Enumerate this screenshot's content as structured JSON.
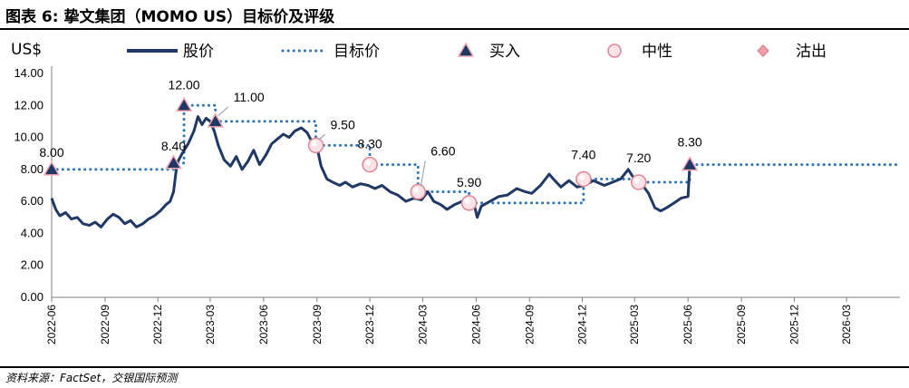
{
  "title": "图表 6: 挚文集团（MOMO US）目标价及评级",
  "source": "资料来源：FactSet，交银国际预测",
  "chart_data": {
    "type": "line",
    "ylabel": "US$",
    "ylim": [
      0,
      14
    ],
    "yticks": [
      "14.00",
      "12.00",
      "10.00",
      "8.00",
      "6.00",
      "4.00",
      "2.00",
      "0.00"
    ],
    "xticks": [
      "2022-06",
      "2022-09",
      "2022-12",
      "2023-03",
      "2023-06",
      "2023-09",
      "2023-12",
      "2024-03",
      "2024-06",
      "2024-09",
      "2024-12",
      "2025-03",
      "2025-06",
      "2025-09",
      "2025-12",
      "2026-03"
    ],
    "xrange": [
      "2022-06",
      "2026-06"
    ],
    "legend": [
      {
        "key": "price",
        "label": "股价",
        "style": "line",
        "color": "#1f3864"
      },
      {
        "key": "target",
        "label": "目标价",
        "style": "dotted",
        "color": "#2e75b6"
      },
      {
        "key": "buy",
        "label": "买入",
        "style": "triangle",
        "color": "#1f3864"
      },
      {
        "key": "neutral",
        "label": "中性",
        "style": "circle",
        "color": "#f2b8c1"
      },
      {
        "key": "sell",
        "label": "沽出",
        "style": "diamond",
        "color": "#f2a0ad"
      }
    ],
    "series": [
      {
        "name": "股价",
        "points": [
          [
            "2022-06-01",
            6.2
          ],
          [
            "2022-06-08",
            5.5
          ],
          [
            "2022-06-15",
            5.1
          ],
          [
            "2022-06-25",
            5.3
          ],
          [
            "2022-07-05",
            4.9
          ],
          [
            "2022-07-15",
            5.0
          ],
          [
            "2022-07-25",
            4.6
          ],
          [
            "2022-08-05",
            4.5
          ],
          [
            "2022-08-15",
            4.7
          ],
          [
            "2022-08-25",
            4.4
          ],
          [
            "2022-09-05",
            4.9
          ],
          [
            "2022-09-15",
            5.2
          ],
          [
            "2022-09-25",
            5.0
          ],
          [
            "2022-10-05",
            4.6
          ],
          [
            "2022-10-15",
            4.8
          ],
          [
            "2022-10-25",
            4.4
          ],
          [
            "2022-11-05",
            4.6
          ],
          [
            "2022-11-15",
            4.9
          ],
          [
            "2022-11-25",
            5.1
          ],
          [
            "2022-12-05",
            5.4
          ],
          [
            "2022-12-15",
            5.8
          ],
          [
            "2022-12-22",
            6.0
          ],
          [
            "2022-12-28",
            6.6
          ],
          [
            "2023-01-03",
            8.4
          ],
          [
            "2023-01-12",
            9.0
          ],
          [
            "2023-01-22",
            9.6
          ],
          [
            "2023-02-01",
            10.4
          ],
          [
            "2023-02-08",
            11.3
          ],
          [
            "2023-02-15",
            10.8
          ],
          [
            "2023-02-22",
            11.2
          ],
          [
            "2023-03-01",
            11.0
          ],
          [
            "2023-03-08",
            10.4
          ],
          [
            "2023-03-15",
            9.5
          ],
          [
            "2023-03-25",
            8.6
          ],
          [
            "2023-04-05",
            8.2
          ],
          [
            "2023-04-15",
            8.8
          ],
          [
            "2023-04-25",
            8.0
          ],
          [
            "2023-05-05",
            8.5
          ],
          [
            "2023-05-15",
            9.2
          ],
          [
            "2023-05-25",
            8.3
          ],
          [
            "2023-06-05",
            8.9
          ],
          [
            "2023-06-15",
            9.6
          ],
          [
            "2023-06-25",
            9.9
          ],
          [
            "2023-07-05",
            10.2
          ],
          [
            "2023-07-15",
            10.0
          ],
          [
            "2023-07-25",
            10.4
          ],
          [
            "2023-08-05",
            10.6
          ],
          [
            "2023-08-15",
            10.3
          ],
          [
            "2023-08-25",
            9.6
          ],
          [
            "2023-09-01",
            9.4
          ],
          [
            "2023-09-08",
            8.2
          ],
          [
            "2023-09-18",
            7.4
          ],
          [
            "2023-09-28",
            7.2
          ],
          [
            "2023-10-10",
            7.0
          ],
          [
            "2023-10-20",
            7.2
          ],
          [
            "2023-11-01",
            6.9
          ],
          [
            "2023-11-15",
            7.1
          ],
          [
            "2023-11-28",
            7.0
          ],
          [
            "2023-12-10",
            6.8
          ],
          [
            "2023-12-22",
            7.0
          ],
          [
            "2024-01-05",
            6.6
          ],
          [
            "2024-01-18",
            6.4
          ],
          [
            "2024-02-01",
            6.0
          ],
          [
            "2024-02-15",
            6.2
          ],
          [
            "2024-02-28",
            6.1
          ],
          [
            "2024-03-10",
            6.6
          ],
          [
            "2024-03-20",
            6.0
          ],
          [
            "2024-04-01",
            5.8
          ],
          [
            "2024-04-12",
            5.5
          ],
          [
            "2024-04-25",
            5.8
          ],
          [
            "2024-05-08",
            6.0
          ],
          [
            "2024-05-20",
            5.7
          ],
          [
            "2024-05-30",
            5.6
          ],
          [
            "2024-06-03",
            5.0
          ],
          [
            "2024-06-10",
            5.7
          ],
          [
            "2024-06-25",
            6.0
          ],
          [
            "2024-07-10",
            6.3
          ],
          [
            "2024-07-25",
            6.4
          ],
          [
            "2024-08-10",
            6.8
          ],
          [
            "2024-08-25",
            6.6
          ],
          [
            "2024-09-05",
            6.5
          ],
          [
            "2024-09-20",
            7.0
          ],
          [
            "2024-10-05",
            7.7
          ],
          [
            "2024-10-12",
            7.4
          ],
          [
            "2024-10-25",
            6.9
          ],
          [
            "2024-11-08",
            7.3
          ],
          [
            "2024-11-22",
            6.9
          ],
          [
            "2024-12-05",
            7.0
          ],
          [
            "2024-12-20",
            7.3
          ],
          [
            "2025-01-08",
            7.0
          ],
          [
            "2025-01-22",
            7.2
          ],
          [
            "2025-02-05",
            7.4
          ],
          [
            "2025-02-18",
            8.0
          ],
          [
            "2025-02-25",
            7.6
          ],
          [
            "2025-03-05",
            7.2
          ],
          [
            "2025-03-15",
            7.0
          ],
          [
            "2025-03-25",
            6.5
          ],
          [
            "2025-04-05",
            5.6
          ],
          [
            "2025-04-15",
            5.4
          ],
          [
            "2025-04-25",
            5.6
          ],
          [
            "2025-05-08",
            5.9
          ],
          [
            "2025-05-20",
            6.2
          ],
          [
            "2025-06-01",
            6.3
          ],
          [
            "2025-06-04",
            8.3
          ]
        ]
      },
      {
        "name": "目标价",
        "step_points": [
          [
            "2022-06-01",
            8.0
          ],
          [
            "2022-12-28",
            8.4
          ],
          [
            "2023-01-15",
            12.0
          ],
          [
            "2023-03-10",
            11.0
          ],
          [
            "2023-08-30",
            9.5
          ],
          [
            "2023-12-01",
            8.3
          ],
          [
            "2024-02-22",
            6.6
          ],
          [
            "2024-05-20",
            5.9
          ],
          [
            "2024-12-03",
            7.4
          ],
          [
            "2025-03-08",
            7.2
          ],
          [
            "2025-06-04",
            8.3
          ],
          [
            "2026-06-01",
            8.3
          ]
        ]
      }
    ],
    "ratings": [
      {
        "date": "2022-06-01",
        "value": 8.0,
        "label": "8.00",
        "rating": "买入"
      },
      {
        "date": "2022-12-28",
        "value": 8.4,
        "label": "8.40",
        "rating": "买入"
      },
      {
        "date": "2023-01-15",
        "value": 12.0,
        "label": "12.00",
        "rating": "买入"
      },
      {
        "date": "2023-03-10",
        "value": 11.0,
        "label": "11.00",
        "rating": "买入"
      },
      {
        "date": "2023-08-30",
        "value": 9.5,
        "label": "9.50",
        "rating": "中性"
      },
      {
        "date": "2023-12-01",
        "value": 8.3,
        "label": "8.30",
        "rating": "中性"
      },
      {
        "date": "2024-02-22",
        "value": 6.6,
        "label": "6.60",
        "rating": "中性"
      },
      {
        "date": "2024-05-20",
        "value": 5.9,
        "label": "5.90",
        "rating": "中性"
      },
      {
        "date": "2024-12-03",
        "value": 7.4,
        "label": "7.40",
        "rating": "中性"
      },
      {
        "date": "2025-03-08",
        "value": 7.2,
        "label": "7.20",
        "rating": "中性"
      },
      {
        "date": "2025-06-04",
        "value": 8.3,
        "label": "8.30",
        "rating": "买入"
      }
    ]
  }
}
